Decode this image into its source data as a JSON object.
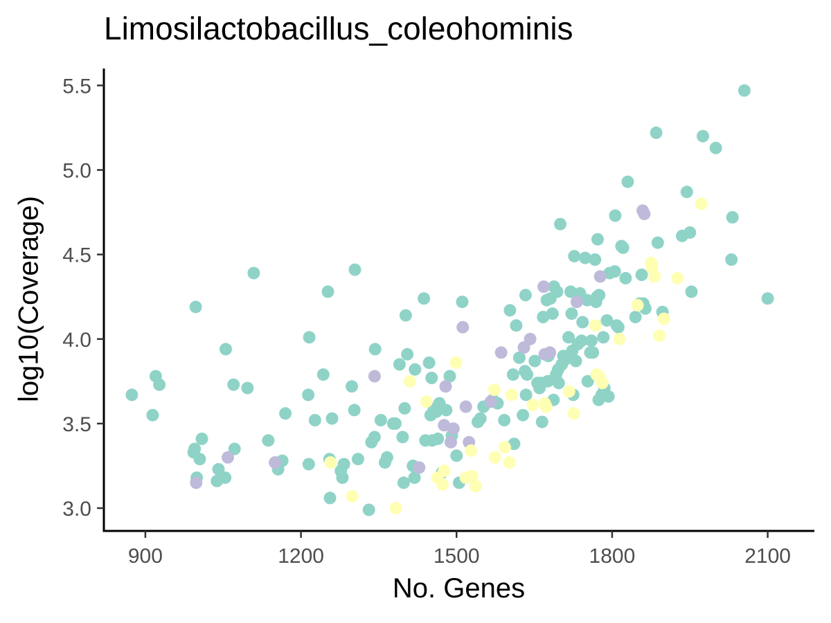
{
  "chart_data": {
    "type": "scatter",
    "title": "Limosilactobacillus_coleohominis",
    "xlabel": "No. Genes",
    "ylabel": "log10(Coverage)",
    "xlim": [
      820,
      2190
    ],
    "ylim": [
      2.865,
      5.6
    ],
    "xticks": [
      900,
      1200,
      1500,
      1800,
      2100
    ],
    "yticks": [
      3.0,
      3.5,
      4.0,
      4.5,
      5.0,
      5.5
    ],
    "xtick_labels": [
      "900",
      "1200",
      "1500",
      "1800",
      "2100"
    ],
    "ytick_labels": [
      "3.0",
      "3.5",
      "4.0",
      "4.5",
      "5.0",
      "5.5"
    ],
    "grid": false,
    "legend": "none",
    "colors": {
      "teal": "#8fd3c7",
      "purple": "#bebada",
      "yellow": "#ffffb3"
    },
    "series": [
      {
        "color": "#8fd3c7",
        "points": [
          [
            874,
            3.67
          ],
          [
            914,
            3.55
          ],
          [
            920,
            3.78
          ],
          [
            927,
            3.73
          ],
          [
            993,
            3.33
          ],
          [
            995,
            3.35
          ],
          [
            997,
            4.19
          ],
          [
            999,
            3.18
          ],
          [
            1005,
            3.29
          ],
          [
            1009,
            3.41
          ],
          [
            1038,
            3.16
          ],
          [
            1041,
            3.23
          ],
          [
            1054,
            3.18
          ],
          [
            1055,
            3.94
          ],
          [
            1070,
            3.73
          ],
          [
            1072,
            3.35
          ],
          [
            1097,
            3.71
          ],
          [
            1109,
            4.39
          ],
          [
            1137,
            3.4
          ],
          [
            1156,
            3.23
          ],
          [
            1164,
            3.28
          ],
          [
            1170,
            3.56
          ],
          [
            1214,
            3.67
          ],
          [
            1215,
            3.26
          ],
          [
            1216,
            4.01
          ],
          [
            1227,
            3.52
          ],
          [
            1243,
            3.79
          ],
          [
            1252,
            4.28
          ],
          [
            1255,
            3.29
          ],
          [
            1256,
            3.06
          ],
          [
            1260,
            3.53
          ],
          [
            1277,
            3.22
          ],
          [
            1280,
            3.18
          ],
          [
            1283,
            3.26
          ],
          [
            1298,
            3.72
          ],
          [
            1303,
            3.58
          ],
          [
            1304,
            4.41
          ],
          [
            1310,
            3.29
          ],
          [
            1331,
            2.99
          ],
          [
            1336,
            3.39
          ],
          [
            1342,
            3.42
          ],
          [
            1343,
            3.94
          ],
          [
            1354,
            3.52
          ],
          [
            1362,
            3.27
          ],
          [
            1366,
            3.3
          ],
          [
            1378,
            3.5
          ],
          [
            1382,
            3.5
          ],
          [
            1390,
            3.85
          ],
          [
            1396,
            3.42
          ],
          [
            1398,
            3.15
          ],
          [
            1400,
            3.59
          ],
          [
            1402,
            4.14
          ],
          [
            1405,
            3.91
          ],
          [
            1416,
            3.25
          ],
          [
            1419,
            3.18
          ],
          [
            1420,
            3.82
          ],
          [
            1437,
            4.24
          ],
          [
            1440,
            3.4
          ],
          [
            1447,
            3.86
          ],
          [
            1450,
            3.55
          ],
          [
            1452,
            3.77
          ],
          [
            1453,
            3.4
          ],
          [
            1456,
            3.58
          ],
          [
            1459,
            3.59
          ],
          [
            1461,
            3.57
          ],
          [
            1464,
            3.41
          ],
          [
            1467,
            3.62
          ],
          [
            1472,
            3.21
          ],
          [
            1480,
            3.58
          ],
          [
            1487,
            3.78
          ],
          [
            1491,
            3.43
          ],
          [
            1500,
            3.31
          ],
          [
            1505,
            3.15
          ],
          [
            1511,
            4.22
          ],
          [
            1541,
            3.51
          ],
          [
            1546,
            3.53
          ],
          [
            1552,
            3.6
          ],
          [
            1570,
            3.64
          ],
          [
            1579,
            3.62
          ],
          [
            1592,
            3.52
          ],
          [
            1603,
            4.17
          ],
          [
            1609,
            3.79
          ],
          [
            1611,
            3.38
          ],
          [
            1615,
            4.08
          ],
          [
            1621,
            3.89
          ],
          [
            1628,
            3.55
          ],
          [
            1632,
            3.81
          ],
          [
            1633,
            4.26
          ],
          [
            1634,
            3.67
          ],
          [
            1636,
            3.79
          ],
          [
            1651,
            3.87
          ],
          [
            1656,
            3.74
          ],
          [
            1660,
            3.71
          ],
          [
            1663,
            3.74
          ],
          [
            1665,
            3.51
          ],
          [
            1667,
            4.13
          ],
          [
            1674,
            4.23
          ],
          [
            1676,
            3.75
          ],
          [
            1677,
            3.9
          ],
          [
            1681,
            4.24
          ],
          [
            1685,
            4.15
          ],
          [
            1687,
            3.64
          ],
          [
            1688,
            4.31
          ],
          [
            1692,
            3.79
          ],
          [
            1694,
            4.28
          ],
          [
            1696,
            3.82
          ],
          [
            1697,
            3.74
          ],
          [
            1700,
            4.68
          ],
          [
            1703,
            3.85
          ],
          [
            1706,
            3.9
          ],
          [
            1710,
            3.88
          ],
          [
            1716,
            4.01
          ],
          [
            1720,
            4.28
          ],
          [
            1722,
            4.15
          ],
          [
            1723,
            3.93
          ],
          [
            1725,
            3.67
          ],
          [
            1727,
            4.49
          ],
          [
            1730,
            3.87
          ],
          [
            1734,
            3.97
          ],
          [
            1738,
            4.27
          ],
          [
            1741,
            3.99
          ],
          [
            1743,
            4.1
          ],
          [
            1748,
            4.48
          ],
          [
            1752,
            4.23
          ],
          [
            1753,
            3.75
          ],
          [
            1758,
            3.92
          ],
          [
            1760,
            3.99
          ],
          [
            1763,
            3.92
          ],
          [
            1767,
            4.47
          ],
          [
            1769,
            4.22
          ],
          [
            1771,
            4.25
          ],
          [
            1772,
            4.59
          ],
          [
            1774,
            3.64
          ],
          [
            1775,
            4.26
          ],
          [
            1780,
            3.67
          ],
          [
            1783,
            4.01
          ],
          [
            1785,
            3.71
          ],
          [
            1790,
            4.11
          ],
          [
            1793,
            3.66
          ],
          [
            1795,
            4.39
          ],
          [
            1805,
            4.4
          ],
          [
            1806,
            4.73
          ],
          [
            1809,
            4.08
          ],
          [
            1812,
            4.07
          ],
          [
            1818,
            4.55
          ],
          [
            1821,
            4.54
          ],
          [
            1826,
            4.36
          ],
          [
            1830,
            4.93
          ],
          [
            1845,
            4.13
          ],
          [
            1853,
            4.21
          ],
          [
            1857,
            4.38
          ],
          [
            1860,
            4.21
          ],
          [
            1864,
            4.18
          ],
          [
            1885,
            5.22
          ],
          [
            1888,
            4.57
          ],
          [
            1897,
            4.16
          ],
          [
            1935,
            4.61
          ],
          [
            1944,
            4.87
          ],
          [
            1950,
            4.63
          ],
          [
            1953,
            4.28
          ],
          [
            1975,
            5.2
          ],
          [
            2000,
            5.13
          ],
          [
            2030,
            4.47
          ],
          [
            2032,
            4.72
          ],
          [
            2055,
            5.47
          ],
          [
            2100,
            4.24
          ]
        ]
      },
      {
        "color": "#bebada",
        "points": [
          [
            998,
            3.15
          ],
          [
            1059,
            3.3
          ],
          [
            1150,
            3.27
          ],
          [
            1342,
            3.78
          ],
          [
            1428,
            3.24
          ],
          [
            1476,
            3.49
          ],
          [
            1479,
            3.72
          ],
          [
            1489,
            3.39
          ],
          [
            1494,
            3.47
          ],
          [
            1512,
            4.07
          ],
          [
            1518,
            3.6
          ],
          [
            1524,
            3.39
          ],
          [
            1566,
            3.63
          ],
          [
            1586,
            3.92
          ],
          [
            1630,
            3.95
          ],
          [
            1642,
            4.0
          ],
          [
            1668,
            4.31
          ],
          [
            1670,
            3.91
          ],
          [
            1680,
            3.92
          ],
          [
            1732,
            4.22
          ],
          [
            1777,
            4.37
          ],
          [
            1859,
            4.76
          ],
          [
            1862,
            4.74
          ]
        ]
      },
      {
        "color": "#ffffb3",
        "points": [
          [
            1257,
            3.27
          ],
          [
            1299,
            3.07
          ],
          [
            1383,
            3.0
          ],
          [
            1410,
            3.75
          ],
          [
            1442,
            3.63
          ],
          [
            1463,
            3.18
          ],
          [
            1473,
            3.14
          ],
          [
            1476,
            3.22
          ],
          [
            1499,
            3.86
          ],
          [
            1518,
            3.18
          ],
          [
            1528,
            3.34
          ],
          [
            1530,
            3.19
          ],
          [
            1537,
            3.13
          ],
          [
            1573,
            3.7
          ],
          [
            1574,
            3.3
          ],
          [
            1593,
            3.36
          ],
          [
            1602,
            3.27
          ],
          [
            1606,
            3.67
          ],
          [
            1647,
            3.61
          ],
          [
            1670,
            3.62
          ],
          [
            1673,
            3.6
          ],
          [
            1717,
            3.69
          ],
          [
            1726,
            3.56
          ],
          [
            1768,
            4.08
          ],
          [
            1770,
            3.79
          ],
          [
            1775,
            3.78
          ],
          [
            1781,
            3.74
          ],
          [
            1814,
            4.0
          ],
          [
            1849,
            4.2
          ],
          [
            1875,
            4.45
          ],
          [
            1877,
            4.42
          ],
          [
            1882,
            4.37
          ],
          [
            1891,
            4.02
          ],
          [
            1900,
            4.12
          ],
          [
            1926,
            4.36
          ],
          [
            1972,
            4.8
          ]
        ]
      }
    ]
  }
}
